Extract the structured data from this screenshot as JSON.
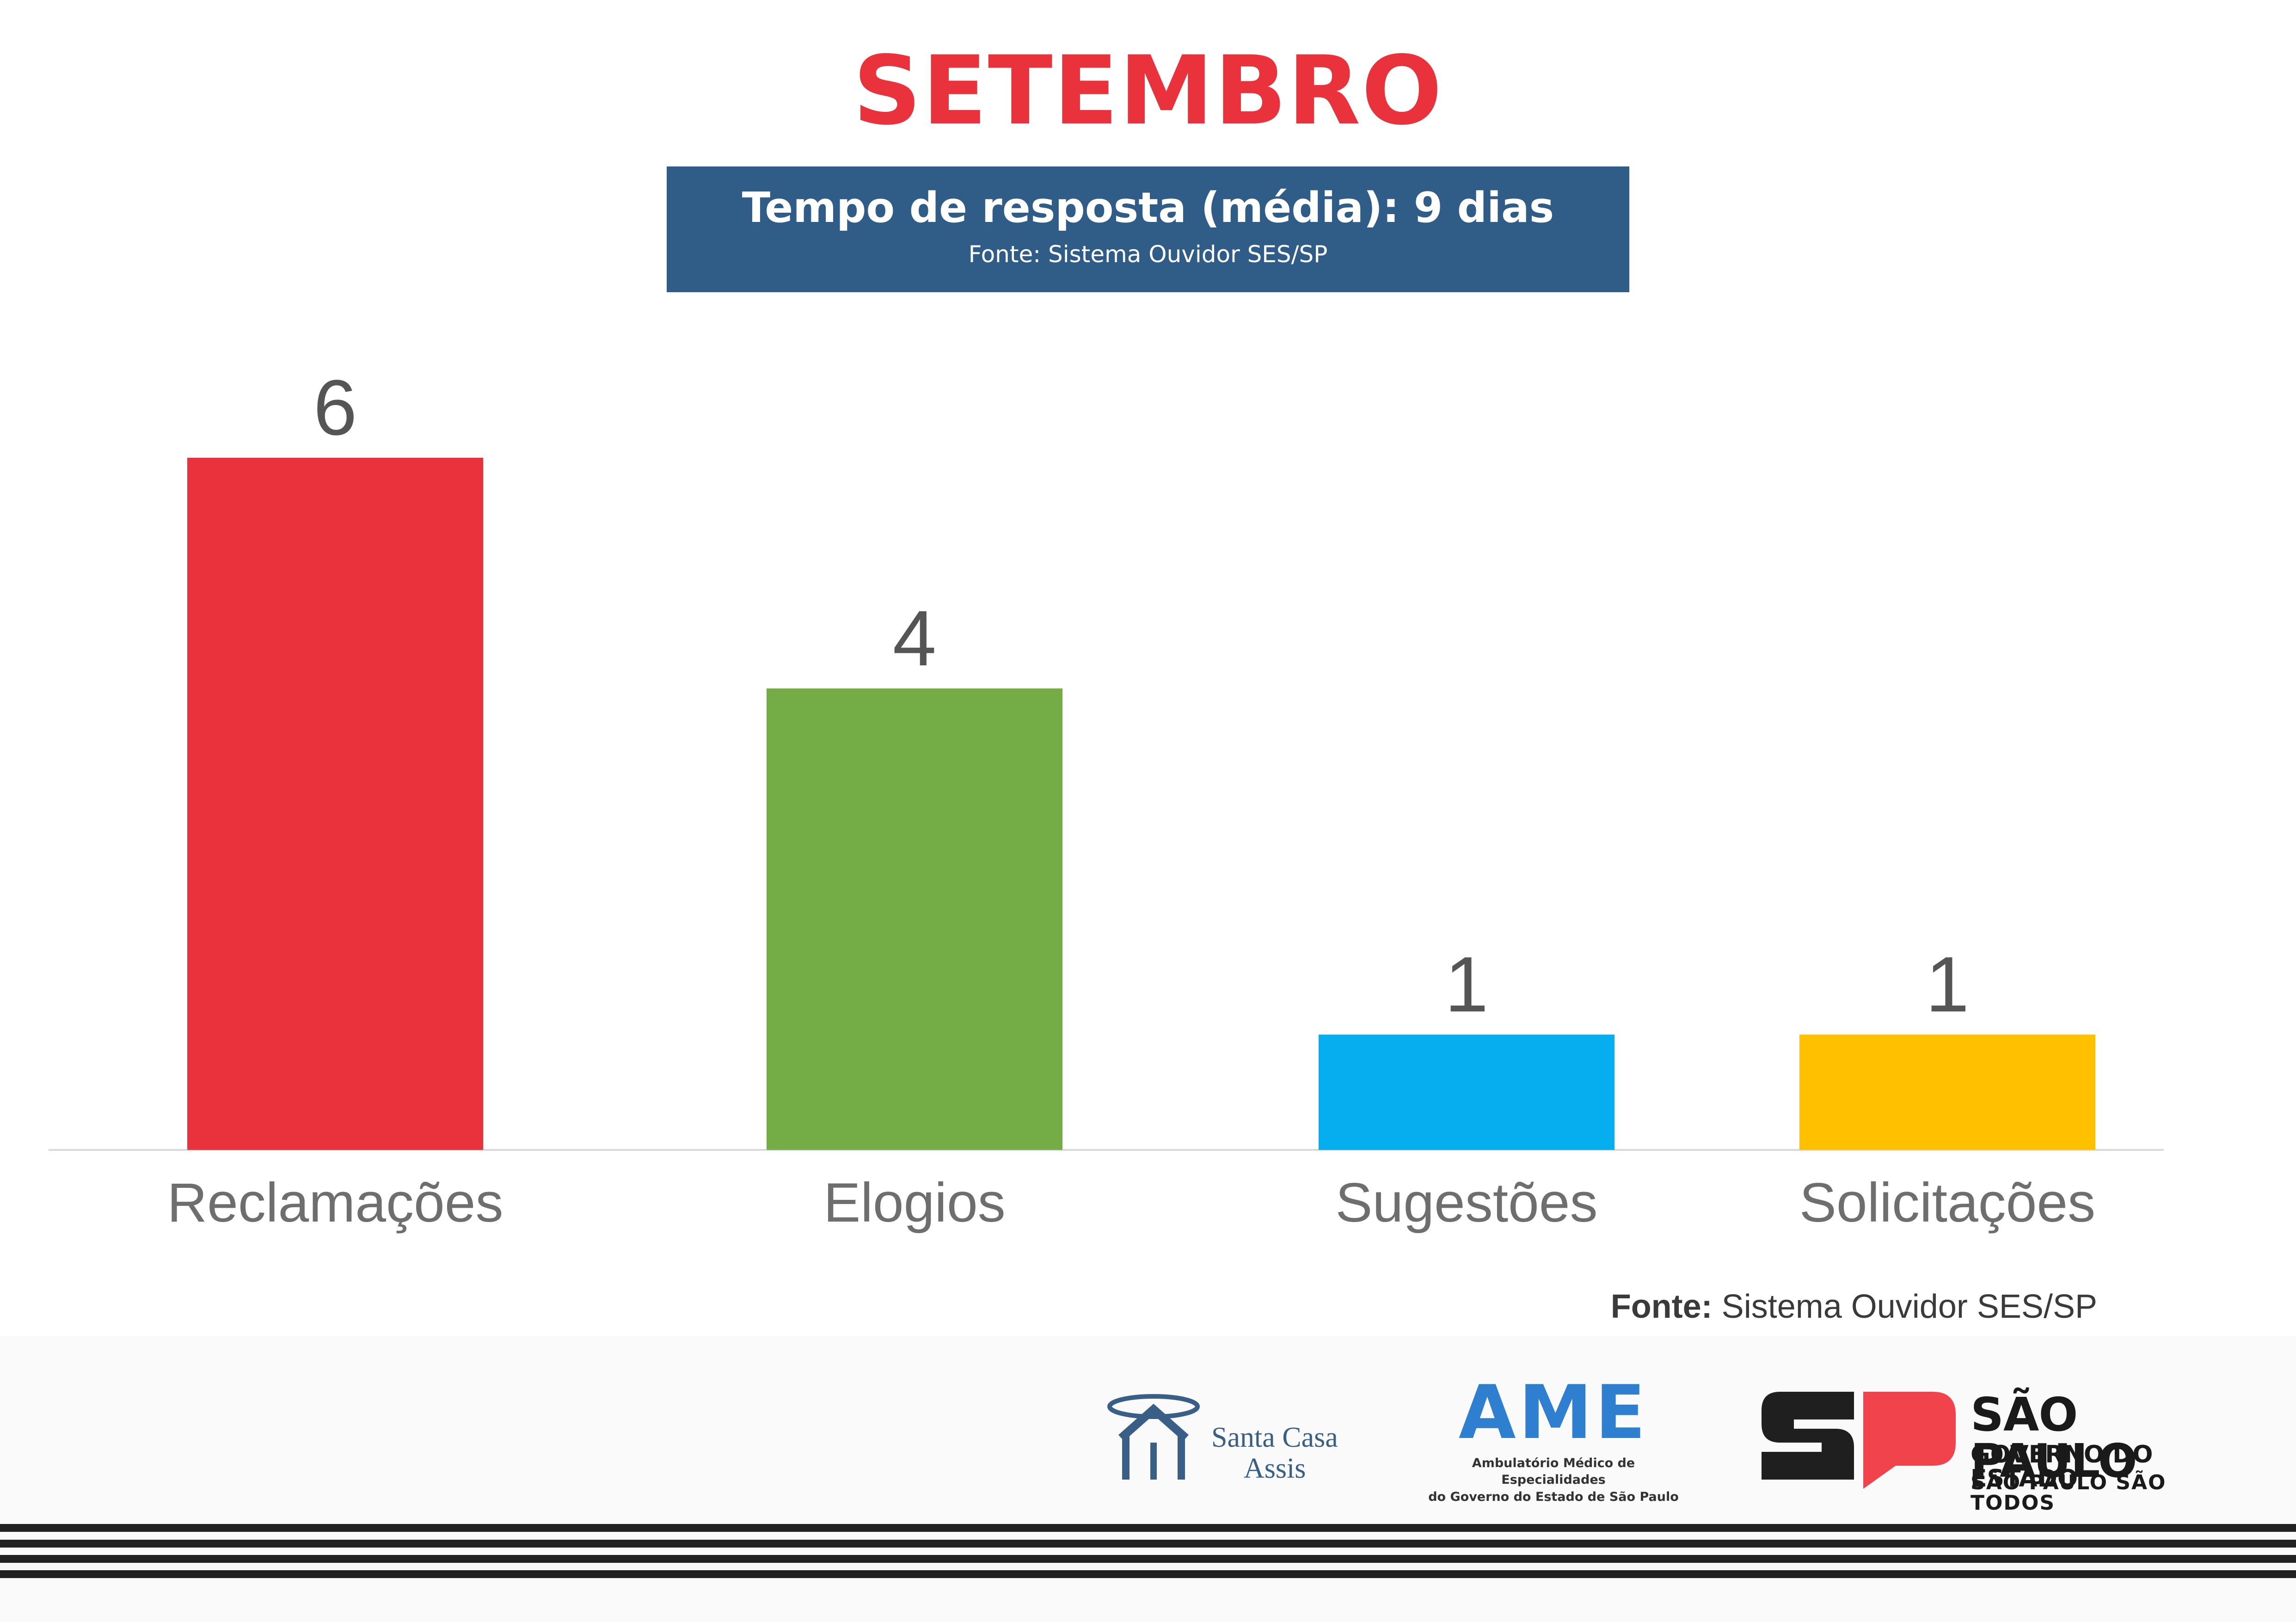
{
  "header": {
    "title": "SETEMBRO",
    "info_main": "Tempo de resposta (média): 9 dias",
    "info_source": "Fonte: Sistema Ouvidor SES/SP",
    "info_box_color": "#2f5d87"
  },
  "chart_data": {
    "type": "bar",
    "title": "SETEMBRO",
    "categories": [
      "Reclamações",
      "Elogios",
      "Sugestões",
      "Solicitações"
    ],
    "values": [
      6,
      4,
      1,
      1
    ],
    "colors": [
      "#e9323b",
      "#74ad46",
      "#06aef0",
      "#ffc000"
    ],
    "grid": false,
    "ylim": [
      0,
      6
    ]
  },
  "footer": {
    "fonte_label": "Fonte:",
    "fonte_text": "Sistema Ouvidor SES/SP",
    "santa_casa_line1": "Santa Casa",
    "santa_casa_line2": "Assis",
    "ame_word": "AME",
    "ame_sub1": "Ambulatório Médico de Especialidades",
    "ame_sub2": "do Governo do Estado de São Paulo",
    "sp_line1": "SÃO PAULO",
    "sp_line2": "GOVERNO DO ESTADO",
    "sp_line3": "SÃO PAULO SÃO TODOS"
  }
}
